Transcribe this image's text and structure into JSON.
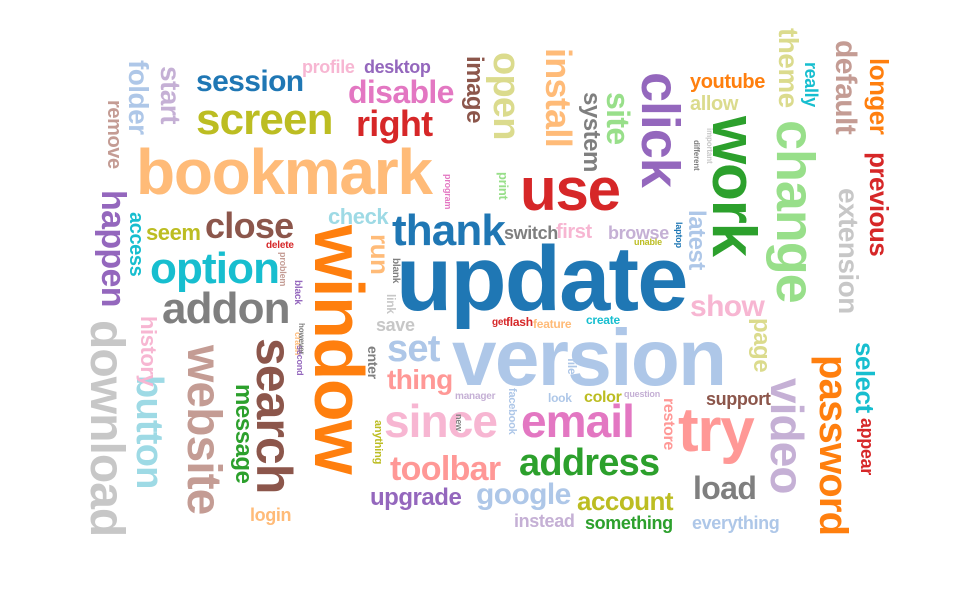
{
  "words": [
    "update",
    "version",
    "window",
    "bookmark",
    "use",
    "click",
    "work",
    "change",
    "thank",
    "search",
    "try",
    "email",
    "since",
    "download",
    "website",
    "video",
    "password",
    "screen",
    "option",
    "addon",
    "close",
    "address",
    "install",
    "open",
    "session",
    "right",
    "disable",
    "button",
    "toolbar",
    "account",
    "google",
    "upgrade",
    "load",
    "set",
    "thing",
    "extension",
    "default",
    "theme",
    "longer",
    "previous",
    "happen",
    "start",
    "folder",
    "remove",
    "system",
    "site",
    "latest",
    "show",
    "page",
    "select",
    "appear",
    "message",
    "history",
    "access",
    "seem",
    "run",
    "check",
    "switch",
    "first",
    "browse",
    "image",
    "profile",
    "desktop",
    "youtube",
    "allow",
    "really",
    "login",
    "everything",
    "something",
    "instead",
    "support",
    "restore",
    "color",
    "look",
    "manager",
    "facebook",
    "file",
    "feature",
    "flash",
    "create",
    "save",
    "enter",
    "link",
    "blank",
    "anything",
    "crash",
    "second",
    "however",
    "problem",
    "black",
    "delete",
    "program",
    "print",
    "unable",
    "laptop",
    "question",
    "get",
    "different",
    "important",
    "new"
  ],
  "colors": {
    "orange": "#ff7f0e",
    "blue": "#1f77b4",
    "lightblue": "#aec7e8",
    "peach": "#ffbb78",
    "red": "#d62728",
    "purple": "#9467bd",
    "green": "#2ca02c",
    "lightgreen": "#98df8a",
    "pink": "#e377c2",
    "lightpink": "#f7b6d2",
    "gray": "#7f7f7f",
    "lightgray": "#c7c7c7",
    "olive": "#bcbd22",
    "lightolive": "#dbdb8d",
    "cyan": "#17becf",
    "lightcyan": "#9edae5",
    "salmon": "#ff9896",
    "brown": "#8c564b",
    "lightbrown": "#c49c94",
    "lavender": "#c5b0d5"
  }
}
